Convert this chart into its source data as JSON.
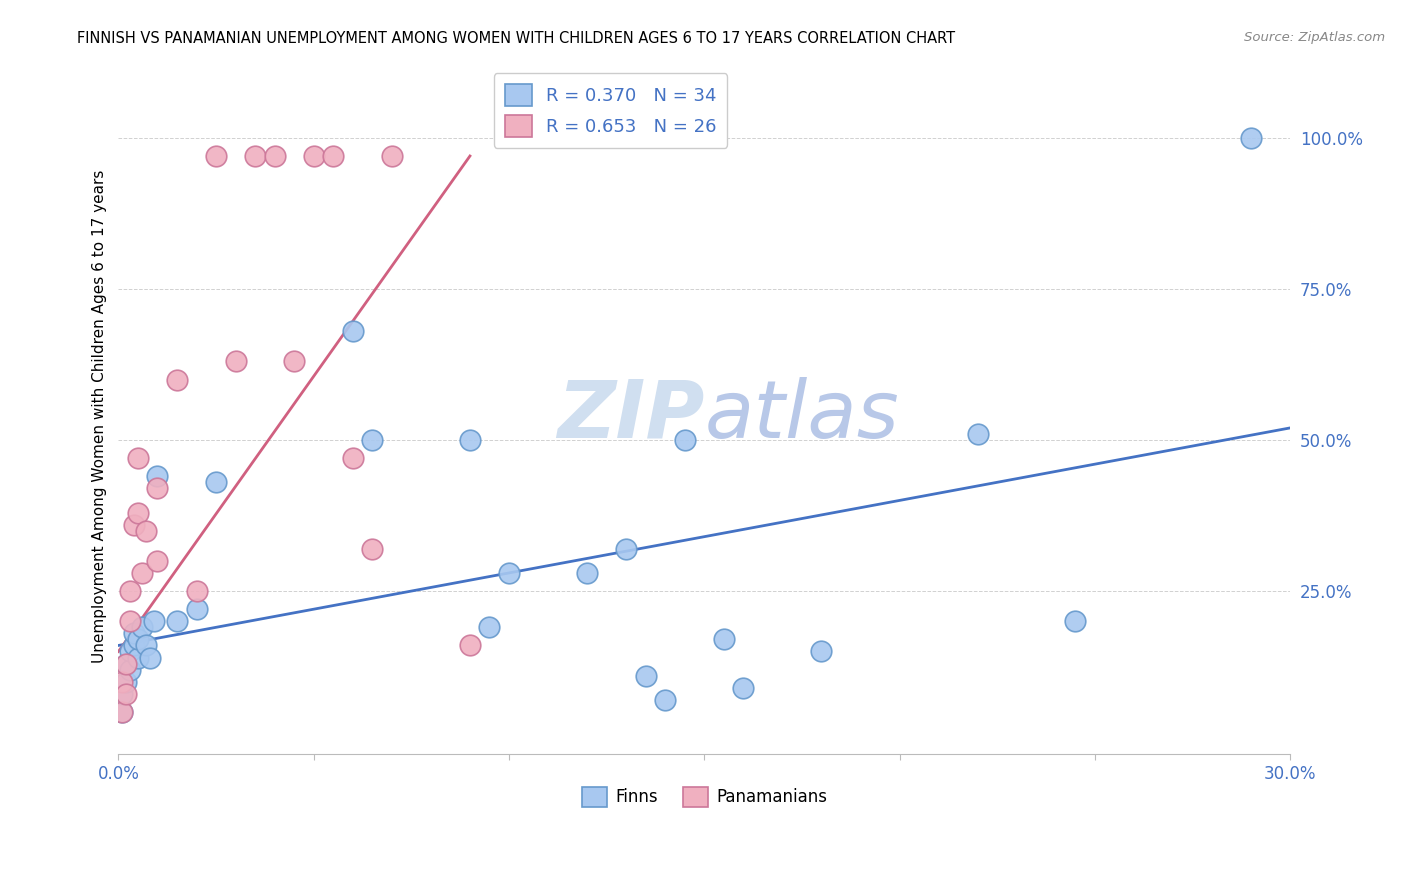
{
  "title": "FINNISH VS PANAMANIAN UNEMPLOYMENT AMONG WOMEN WITH CHILDREN AGES 6 TO 17 YEARS CORRELATION CHART",
  "source": "Source: ZipAtlas.com",
  "ylabel": "Unemployment Among Women with Children Ages 6 to 17 years",
  "ytick_labels": [
    "100.0%",
    "75.0%",
    "50.0%",
    "25.0%"
  ],
  "ytick_values": [
    1.0,
    0.75,
    0.5,
    0.25
  ],
  "xlim": [
    0.0,
    0.3
  ],
  "ylim": [
    -0.02,
    1.1
  ],
  "legend_entry1": "R = 0.370   N = 34",
  "legend_entry2": "R = 0.653   N = 26",
  "legend_labels": [
    "Finns",
    "Panamanians"
  ],
  "finn_color": "#A8C8F0",
  "finn_color_dark": "#6699CC",
  "pan_color": "#F0B0C0",
  "pan_color_dark": "#CC7799",
  "finn_line_color": "#4472C4",
  "pan_line_color": "#D06080",
  "watermark_color": "#D0DFF0",
  "finns_x": [
    0.001,
    0.001,
    0.002,
    0.002,
    0.003,
    0.003,
    0.004,
    0.004,
    0.005,
    0.005,
    0.006,
    0.007,
    0.008,
    0.009,
    0.01,
    0.015,
    0.02,
    0.025,
    0.06,
    0.065,
    0.09,
    0.095,
    0.1,
    0.12,
    0.13,
    0.135,
    0.14,
    0.145,
    0.155,
    0.16,
    0.18,
    0.22,
    0.245,
    0.29
  ],
  "finns_y": [
    0.05,
    0.08,
    0.1,
    0.13,
    0.12,
    0.15,
    0.16,
    0.18,
    0.14,
    0.17,
    0.19,
    0.16,
    0.14,
    0.2,
    0.44,
    0.2,
    0.22,
    0.43,
    0.68,
    0.5,
    0.5,
    0.19,
    0.28,
    0.28,
    0.32,
    0.11,
    0.07,
    0.5,
    0.17,
    0.09,
    0.15,
    0.51,
    0.2,
    1.0
  ],
  "pans_x": [
    0.001,
    0.001,
    0.002,
    0.002,
    0.003,
    0.003,
    0.004,
    0.005,
    0.005,
    0.006,
    0.007,
    0.01,
    0.01,
    0.015,
    0.02,
    0.025,
    0.03,
    0.035,
    0.04,
    0.045,
    0.05,
    0.055,
    0.06,
    0.065,
    0.07,
    0.09
  ],
  "pans_y": [
    0.05,
    0.1,
    0.08,
    0.13,
    0.2,
    0.25,
    0.36,
    0.38,
    0.47,
    0.28,
    0.35,
    0.3,
    0.42,
    0.6,
    0.25,
    0.97,
    0.63,
    0.97,
    0.97,
    0.63,
    0.97,
    0.97,
    0.47,
    0.32,
    0.97,
    0.16
  ],
  "finn_line_x": [
    0.0,
    0.3
  ],
  "finn_line_y": [
    0.16,
    0.52
  ],
  "pan_line_x": [
    0.0,
    0.09
  ],
  "pan_line_y": [
    0.15,
    0.97
  ]
}
